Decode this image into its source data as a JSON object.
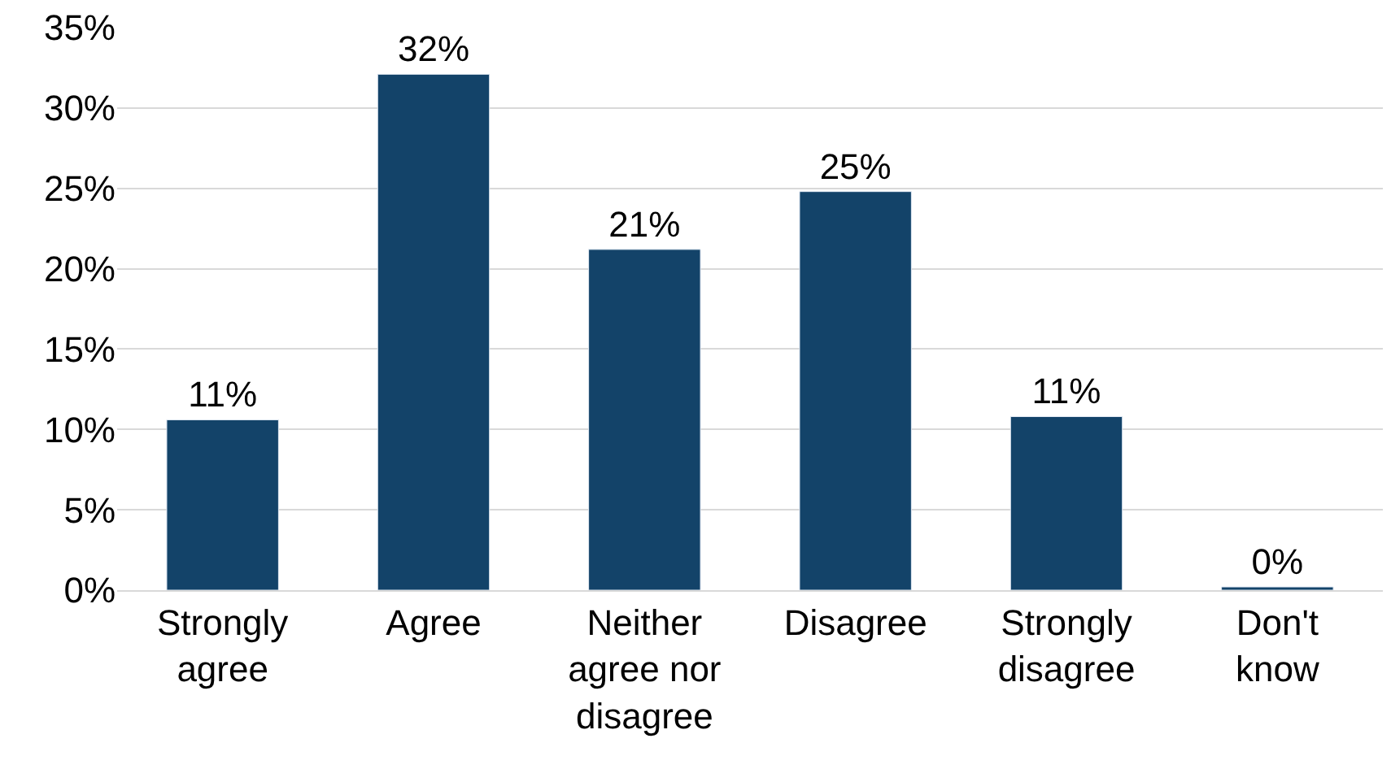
{
  "chart_data": {
    "type": "bar",
    "categories": [
      "Strongly agree",
      "Agree",
      "Neither agree nor disagree",
      "Disagree",
      "Strongly disagree",
      "Don't know"
    ],
    "values": [
      10.6,
      32.1,
      21.2,
      24.8,
      10.8,
      0.2
    ],
    "value_labels": [
      "11%",
      "32%",
      "21%",
      "25%",
      "11%",
      "0%"
    ],
    "color": "#134369",
    "ylim": [
      0,
      35
    ],
    "yticks": [
      {
        "value": 0,
        "label": "0%"
      },
      {
        "value": 5,
        "label": "5%"
      },
      {
        "value": 10,
        "label": "10%"
      },
      {
        "value": 15,
        "label": "15%"
      },
      {
        "value": 20,
        "label": "20%"
      },
      {
        "value": 25,
        "label": "25%"
      },
      {
        "value": 30,
        "label": "30%"
      },
      {
        "value": 35,
        "label": "35%"
      }
    ],
    "grid": "y",
    "legend": false
  }
}
